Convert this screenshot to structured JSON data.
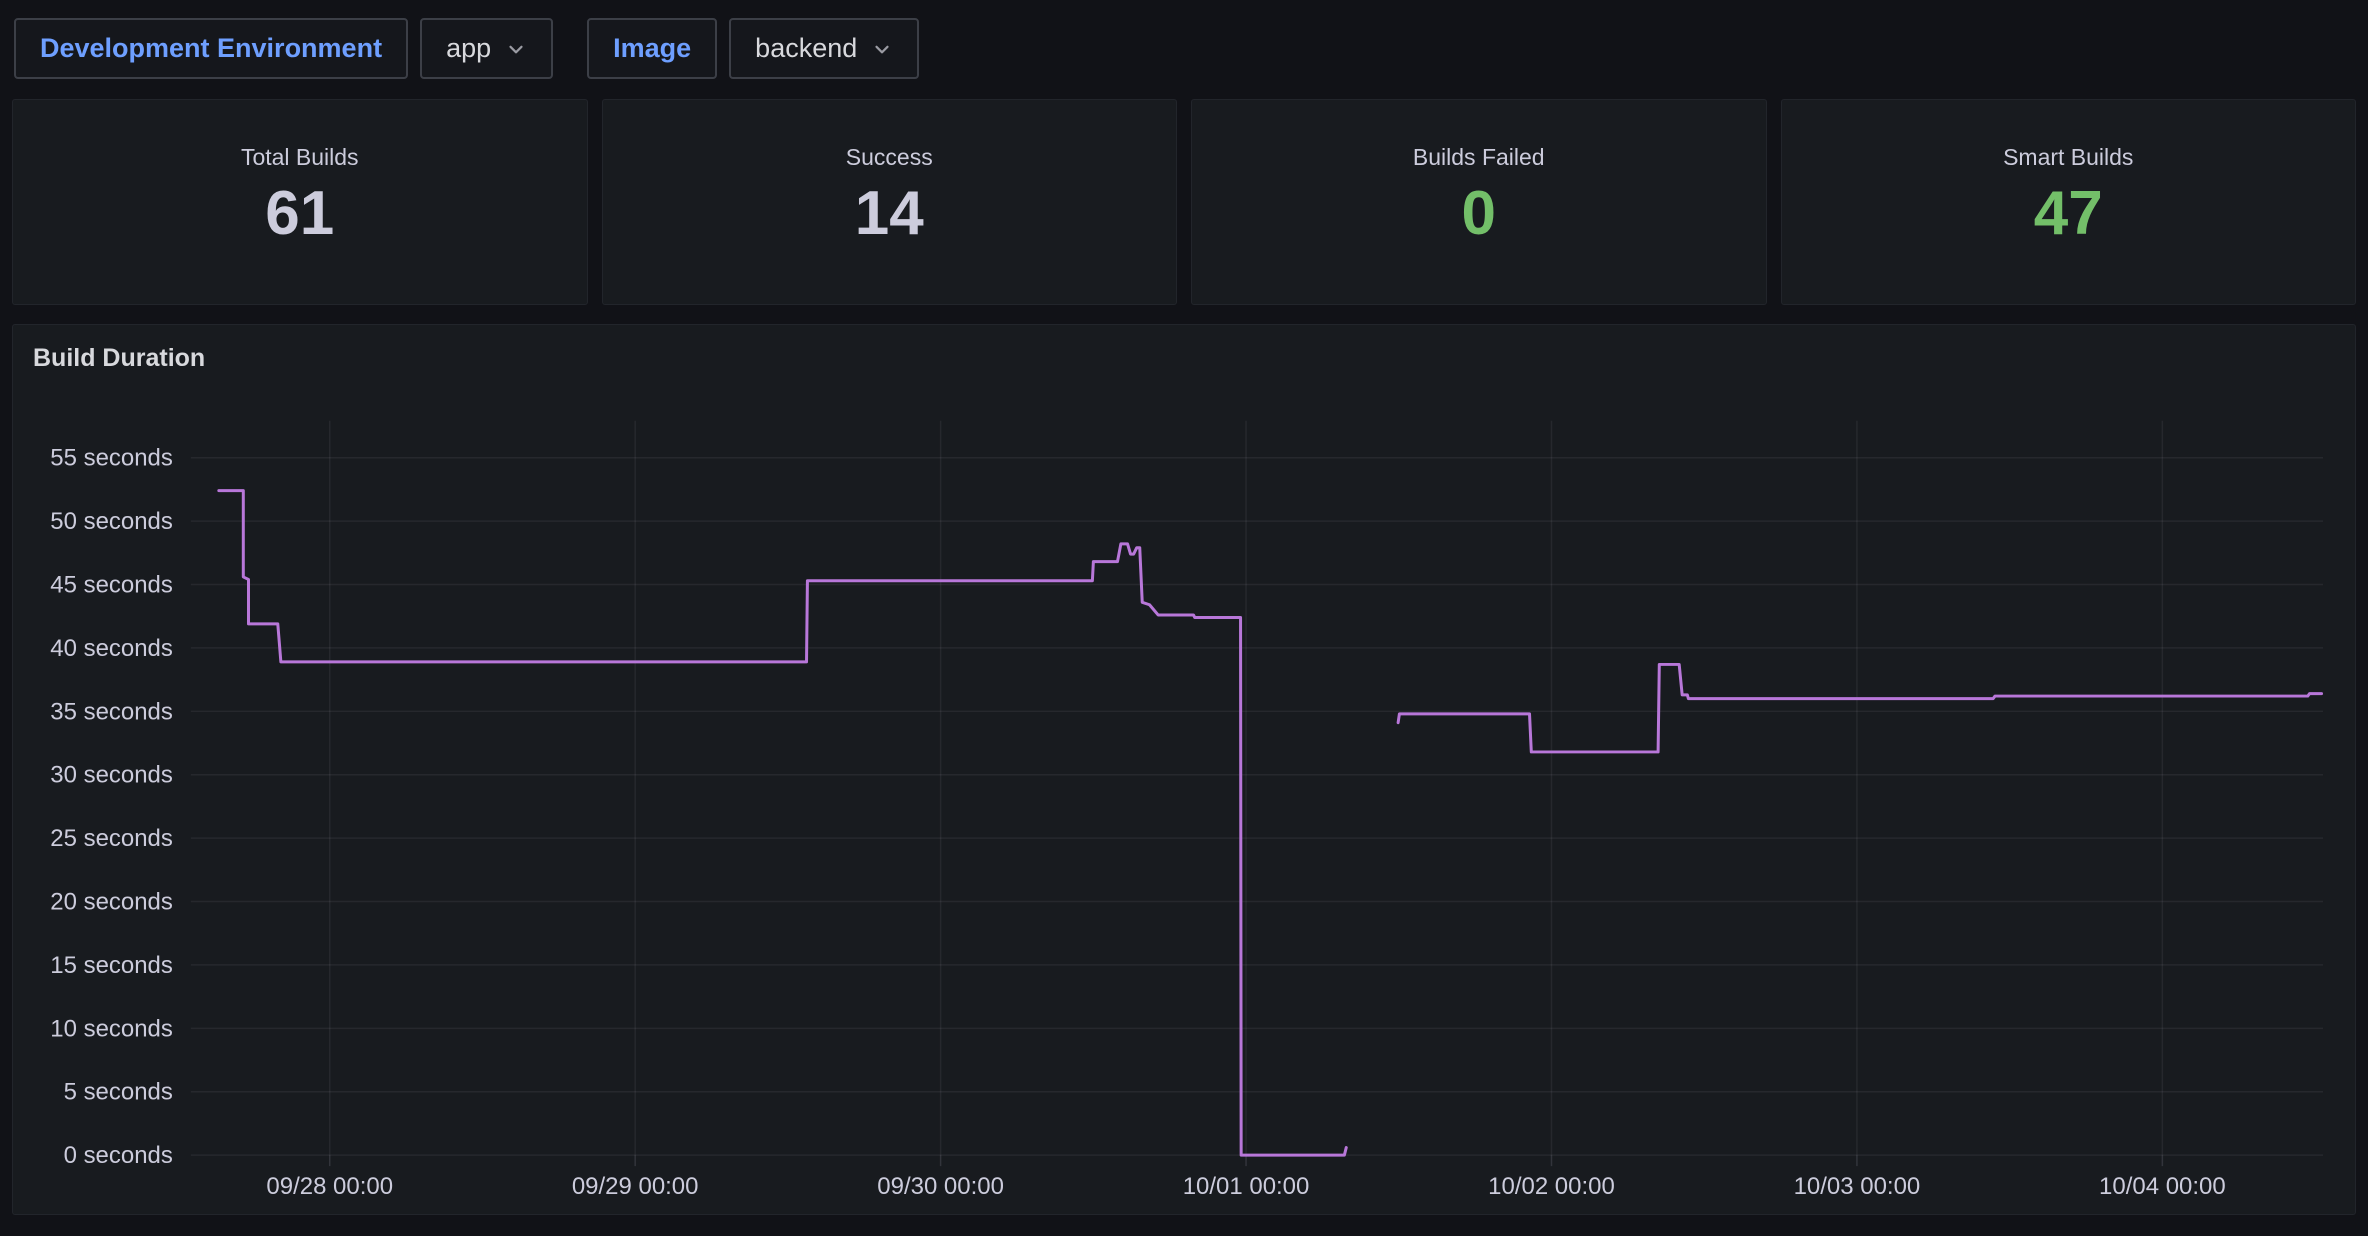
{
  "topbar": {
    "items": [
      {
        "text": "Development Environment",
        "kind": "link-label"
      },
      {
        "text": "app",
        "kind": "select"
      },
      {
        "text": "Image",
        "kind": "link-label"
      },
      {
        "text": "backend",
        "kind": "select"
      }
    ]
  },
  "stats": {
    "panels": [
      {
        "label": "Total Builds",
        "value": "61",
        "value_color": "#CCCCDC"
      },
      {
        "label": "Success",
        "value": "14",
        "value_color": "#CCCCDC"
      },
      {
        "label": "Builds Failed",
        "value": "0",
        "value_color": "#73BF69"
      },
      {
        "label": "Smart Builds",
        "value": "47",
        "value_color": "#73BF69"
      }
    ]
  },
  "colors": {
    "accent_blue": "#6E9FFF",
    "status_green": "#73BF69",
    "series_purple": "#B877D9",
    "text": "#CCCCDC",
    "panel_bg": "#181B1F",
    "page_bg": "#111217"
  },
  "chart_data": {
    "type": "line",
    "title": "Build Duration",
    "xlabel": "",
    "ylabel": "seconds",
    "ylim": [
      0,
      55
    ],
    "y_tick_step": 5,
    "y_tick_labels": [
      "0 seconds",
      "5 seconds",
      "10 seconds",
      "15 seconds",
      "20 seconds",
      "25 seconds",
      "30 seconds",
      "35 seconds",
      "40 seconds",
      "45 seconds",
      "50 seconds",
      "55 seconds"
    ],
    "x_tick_labels": [
      "09/28 00:00",
      "09/29 00:00",
      "09/30 00:00",
      "10/01 00:00",
      "10/02 00:00",
      "10/03 00:00",
      "10/04 00:00"
    ],
    "x_range_days": [
      -0.455,
      6.525
    ],
    "grid": true,
    "legend": "none",
    "series": [
      {
        "name": "Build Duration",
        "color": "#B877D9",
        "unit": "seconds",
        "x_unit": "days since 09/28 00:00",
        "segments": [
          [
            [
              -0.363,
              52.4
            ],
            [
              -0.283,
              52.4
            ],
            [
              -0.283,
              45.6
            ],
            [
              -0.266,
              45.4
            ],
            [
              -0.266,
              41.9
            ],
            [
              -0.17,
              41.9
            ],
            [
              -0.16,
              38.9
            ],
            [
              1.561,
              38.9
            ],
            [
              1.564,
              45.3
            ],
            [
              2.497,
              45.3
            ],
            [
              2.5,
              46.8
            ],
            [
              2.579,
              46.8
            ],
            [
              2.59,
              48.2
            ],
            [
              2.612,
              48.2
            ],
            [
              2.622,
              47.4
            ],
            [
              2.632,
              47.4
            ],
            [
              2.642,
              47.9
            ],
            [
              2.652,
              47.9
            ],
            [
              2.66,
              43.6
            ],
            [
              2.684,
              43.4
            ],
            [
              2.712,
              42.6
            ],
            [
              2.828,
              42.6
            ],
            [
              2.832,
              42.4
            ],
            [
              2.982,
              42.4
            ],
            [
              2.984,
              0.0
            ],
            [
              3.322,
              0.0
            ],
            [
              3.328,
              0.6
            ]
          ],
          [
            [
              3.498,
              34.1
            ],
            [
              3.502,
              34.8
            ],
            [
              3.928,
              34.8
            ],
            [
              3.934,
              31.8
            ],
            [
              4.349,
              31.8
            ],
            [
              4.353,
              38.7
            ],
            [
              4.418,
              38.7
            ],
            [
              4.428,
              36.3
            ],
            [
              4.445,
              36.3
            ],
            [
              4.448,
              36.0
            ],
            [
              5.446,
              36.0
            ],
            [
              5.452,
              36.2
            ],
            [
              6.476,
              36.2
            ],
            [
              6.482,
              36.4
            ],
            [
              6.521,
              36.4
            ]
          ]
        ]
      }
    ]
  }
}
